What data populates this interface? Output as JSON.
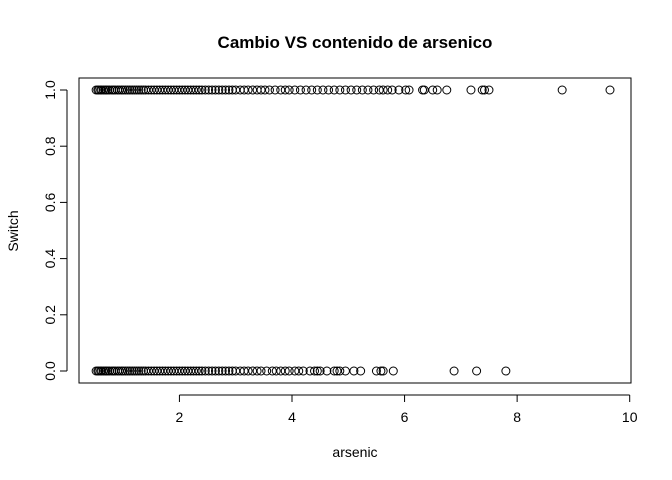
{
  "chart_data": {
    "type": "scatter",
    "title": "Cambio VS contenido de arsenico",
    "xlabel": "arsenic",
    "ylabel": "Switch",
    "xlim": [
      0.5,
      10
    ],
    "ylim": [
      0,
      1
    ],
    "xticks": [
      "2",
      "4",
      "6",
      "8",
      "10"
    ],
    "yticks": [
      "0.0",
      "0.2",
      "0.4",
      "0.6",
      "0.8",
      "1.0"
    ],
    "grid": false,
    "series": [
      {
        "y": 1,
        "x": [
          0.52,
          0.55,
          0.57,
          0.6,
          0.62,
          0.65,
          0.68,
          0.7,
          0.73,
          0.76,
          0.8,
          0.83,
          0.86,
          0.9,
          0.93,
          0.97,
          1.0,
          1.04,
          1.08,
          1.12,
          1.16,
          1.2,
          1.24,
          1.28,
          1.32,
          1.36,
          1.4,
          1.45,
          1.5,
          1.55,
          1.6,
          1.65,
          1.7,
          1.75,
          1.8,
          1.85,
          1.9,
          1.95,
          2.0,
          2.05,
          2.1,
          2.15,
          2.2,
          2.25,
          2.3,
          2.35,
          2.4,
          2.46,
          2.52,
          2.58,
          2.64,
          2.7,
          2.76,
          2.82,
          2.88,
          2.94,
          3.0,
          3.08,
          3.15,
          3.22,
          3.3,
          3.38,
          3.45,
          3.52,
          3.6,
          3.7,
          3.8,
          3.88,
          3.95,
          4.05,
          4.15,
          4.25,
          4.35,
          4.45,
          4.55,
          4.65,
          4.75,
          4.85,
          4.95,
          5.05,
          5.15,
          5.25,
          5.35,
          5.45,
          5.55,
          5.62,
          5.7,
          5.78,
          5.9,
          6.02,
          6.08,
          6.32,
          6.35,
          6.5,
          6.58,
          6.75,
          7.18,
          7.38,
          7.42,
          7.5,
          8.8,
          9.65
        ]
      },
      {
        "y": 0,
        "x": [
          0.52,
          0.55,
          0.57,
          0.6,
          0.62,
          0.65,
          0.68,
          0.7,
          0.73,
          0.76,
          0.8,
          0.83,
          0.86,
          0.9,
          0.93,
          0.97,
          1.0,
          1.04,
          1.08,
          1.12,
          1.16,
          1.2,
          1.24,
          1.28,
          1.32,
          1.36,
          1.4,
          1.45,
          1.5,
          1.55,
          1.6,
          1.65,
          1.7,
          1.75,
          1.8,
          1.85,
          1.9,
          1.95,
          2.0,
          2.05,
          2.1,
          2.15,
          2.2,
          2.25,
          2.3,
          2.35,
          2.4,
          2.46,
          2.52,
          2.58,
          2.64,
          2.7,
          2.76,
          2.82,
          2.88,
          2.94,
          3.0,
          3.08,
          3.15,
          3.22,
          3.3,
          3.38,
          3.45,
          3.55,
          3.65,
          3.72,
          3.8,
          3.88,
          3.95,
          4.05,
          4.12,
          4.2,
          4.32,
          4.4,
          4.45,
          4.5,
          4.62,
          4.75,
          4.8,
          4.85,
          4.95,
          5.1,
          5.22,
          5.5,
          5.58,
          5.62,
          5.8,
          6.88,
          7.28,
          7.8
        ]
      }
    ]
  }
}
